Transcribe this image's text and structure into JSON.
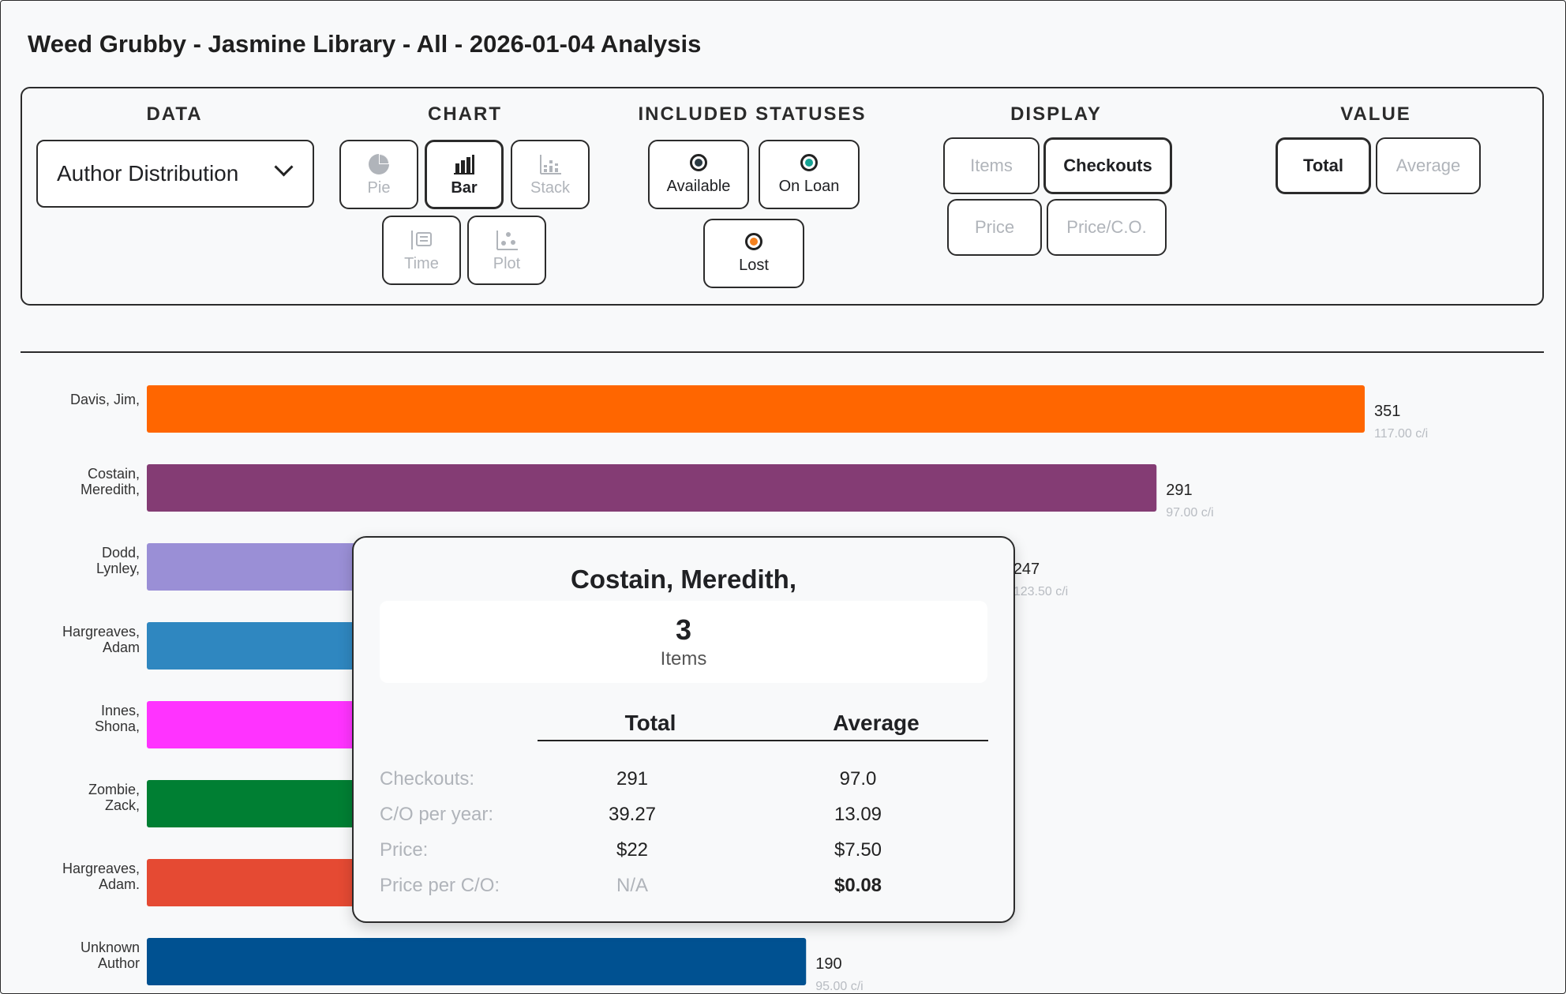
{
  "page": {
    "title": "Weed Grubby - Jasmine Library - All - 2026-01-04 Analysis"
  },
  "controls": {
    "data": {
      "heading": "DATA",
      "selected": "Author Distribution"
    },
    "chart": {
      "heading": "CHART",
      "buttons": {
        "pie": "Pie",
        "bar": "Bar",
        "stack": "Stack",
        "time": "Time",
        "plot": "Plot"
      },
      "active": "Bar"
    },
    "statuses": {
      "heading": "INCLUDED STATUSES",
      "available": "Available",
      "on_loan": "On Loan",
      "lost": "Lost",
      "colors": {
        "available": "#2b3a42",
        "on_loan": "#16a394",
        "lost": "#f4811f"
      }
    },
    "display": {
      "heading": "DISPLAY",
      "items": "Items",
      "checkouts": "Checkouts",
      "price": "Price",
      "price_co": "Price/C.O.",
      "active": "Checkouts"
    },
    "value": {
      "heading": "VALUE",
      "total": "Total",
      "average": "Average",
      "active": "Total"
    }
  },
  "chart_data": {
    "type": "bar",
    "orientation": "horizontal",
    "categories": [
      [
        "Davis, Jim,"
      ],
      [
        "Costain,",
        "Meredith,"
      ],
      [
        "Dodd,",
        "Lynley,"
      ],
      [
        "Hargreaves,",
        "Adam"
      ],
      [
        "Innes,",
        "Shona,"
      ],
      [
        "Zombie,",
        "Zack,"
      ],
      [
        "Hargreaves,",
        "Adam."
      ],
      [
        "Unknown",
        "Author"
      ]
    ],
    "values": [
      351,
      291,
      247,
      null,
      null,
      null,
      null,
      190
    ],
    "value_labels": [
      "351",
      "291",
      "247",
      "",
      "",
      "",
      "",
      "190"
    ],
    "sub_labels": [
      "117.00 c/i",
      "97.00 c/i",
      "123.50 c/i",
      "",
      "",
      "",
      "",
      "95.00 c/i"
    ],
    "colors": [
      "#ff6600",
      "#843c74",
      "#9a8fd6",
      "#2f87c0",
      "#ff33ff",
      "#007f33",
      "#e54a33",
      "#005191"
    ],
    "xlim": [
      0,
      351
    ]
  },
  "tooltip": {
    "title": "Costain, Meredith,",
    "count": "3",
    "count_unit": "Items",
    "col_total": "Total",
    "col_average": "Average",
    "rows": [
      {
        "label": "Checkouts:",
        "total": "291",
        "average": "97.0"
      },
      {
        "label": "C/O per year:",
        "total": "39.27",
        "average": "13.09"
      },
      {
        "label": "Price:",
        "total": "$22",
        "average": "$7.50"
      },
      {
        "label": "Price per C/O:",
        "total": "N/A",
        "average": "$0.08"
      }
    ]
  }
}
